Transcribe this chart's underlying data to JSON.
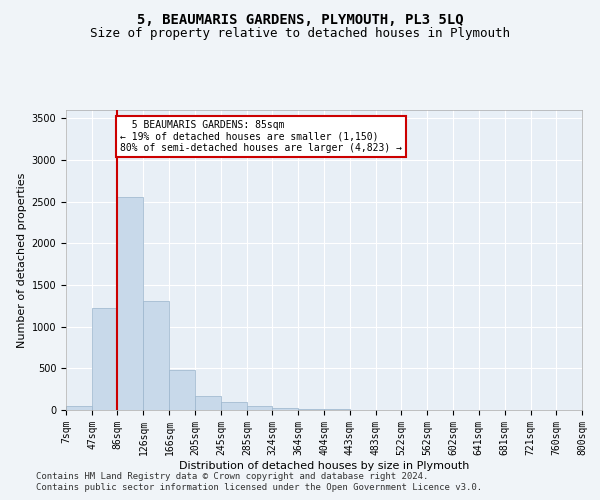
{
  "title": "5, BEAUMARIS GARDENS, PLYMOUTH, PL3 5LQ",
  "subtitle": "Size of property relative to detached houses in Plymouth",
  "xlabel": "Distribution of detached houses by size in Plymouth",
  "ylabel": "Number of detached properties",
  "footnote1": "Contains HM Land Registry data © Crown copyright and database right 2024.",
  "footnote2": "Contains public sector information licensed under the Open Government Licence v3.0.",
  "annotation_line1": "  5 BEAUMARIS GARDENS: 85sqm  ",
  "annotation_line2": "← 19% of detached houses are smaller (1,150)",
  "annotation_line3": "80% of semi-detached houses are larger (4,823) →",
  "bar_color": "#c8d9ea",
  "bar_edge_color": "#9ab5cc",
  "vline_color": "#cc0000",
  "categories": [
    "7sqm",
    "47sqm",
    "86sqm",
    "126sqm",
    "166sqm",
    "205sqm",
    "245sqm",
    "285sqm",
    "324sqm",
    "364sqm",
    "404sqm",
    "443sqm",
    "483sqm",
    "522sqm",
    "562sqm",
    "602sqm",
    "641sqm",
    "681sqm",
    "721sqm",
    "760sqm",
    "800sqm"
  ],
  "bin_edges": [
    7,
    47,
    86,
    126,
    166,
    205,
    245,
    285,
    324,
    364,
    404,
    443,
    483,
    522,
    562,
    602,
    641,
    681,
    721,
    760,
    800
  ],
  "values": [
    50,
    1230,
    2560,
    1310,
    480,
    170,
    95,
    45,
    25,
    15,
    8,
    4,
    2,
    0,
    0,
    0,
    0,
    0,
    0,
    0
  ],
  "ylim": [
    0,
    3600
  ],
  "yticks": [
    0,
    500,
    1000,
    1500,
    2000,
    2500,
    3000,
    3500
  ],
  "background_color": "#f0f4f8",
  "plot_bg_color": "#e8eff6",
  "grid_color": "#ffffff",
  "title_fontsize": 10,
  "subtitle_fontsize": 9,
  "axis_fontsize": 8,
  "tick_fontsize": 7,
  "footnote_fontsize": 6.5
}
